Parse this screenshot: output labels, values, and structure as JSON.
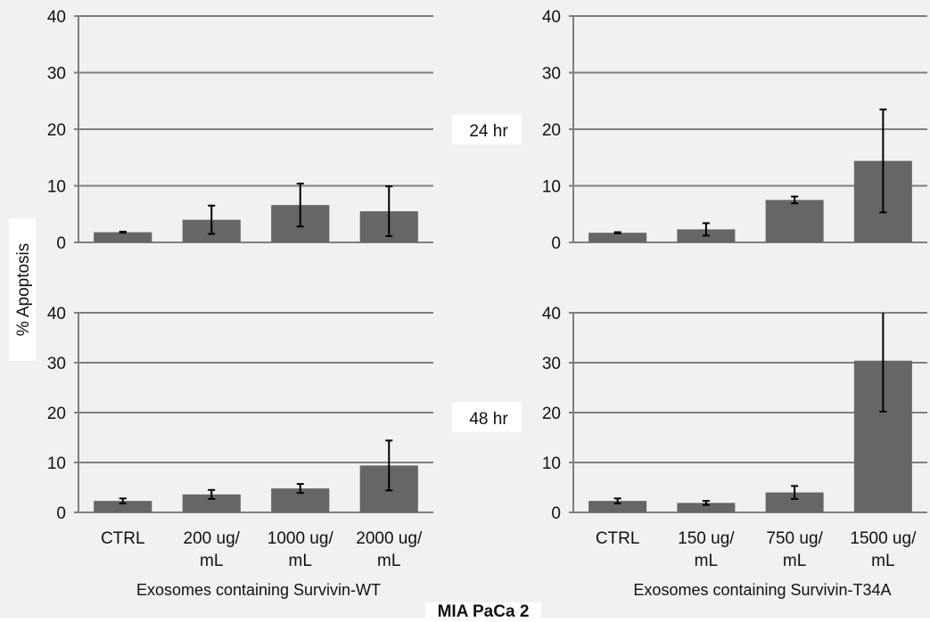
{
  "figure": {
    "ylabel": "% Apoptosis",
    "row_labels": [
      "24 hr",
      "48 hr"
    ],
    "col_labels": [
      "Exosomes containing Survivin-WT",
      "Exosomes containing Survivin-T34A"
    ],
    "title": "MIA PaCa 2"
  },
  "colors": {
    "bar": "#666666",
    "grid": "#7f7f7f",
    "background": "#f1f1f1",
    "error_bar": "#000000"
  },
  "chart_data": [
    {
      "type": "bar",
      "panel": "Survivin-WT, 24 hr",
      "categories": [
        "CTRL",
        "200 ug/ mL",
        "1000 ug/ mL",
        "2000 ug/ mL"
      ],
      "values": [
        1.8,
        4.0,
        6.6,
        5.5
      ],
      "errors": [
        0.1,
        2.5,
        3.8,
        4.4
      ],
      "ylim": [
        0,
        40
      ],
      "yticks": [
        0,
        10,
        20,
        30,
        40
      ],
      "grid": true
    },
    {
      "type": "bar",
      "panel": "Survivin-T34A, 24 hr",
      "categories": [
        "CTRL",
        "150 ug/ mL",
        "750 ug/ mL",
        "1500 ug/ mL"
      ],
      "values": [
        1.7,
        2.3,
        7.5,
        14.4
      ],
      "errors": [
        0.1,
        1.1,
        0.6,
        9.1
      ],
      "ylim": [
        0,
        40
      ],
      "yticks": [
        0,
        10,
        20,
        30,
        40
      ],
      "grid": true
    },
    {
      "type": "bar",
      "panel": "Survivin-WT, 48 hr",
      "categories": [
        "CTRL",
        "200 ug/ mL",
        "1000 ug/ mL",
        "2000 ug/ mL"
      ],
      "values": [
        2.3,
        3.6,
        4.8,
        9.4
      ],
      "errors": [
        0.5,
        0.9,
        0.9,
        5.0
      ],
      "ylim": [
        0,
        40
      ],
      "yticks": [
        0,
        10,
        20,
        30,
        40
      ],
      "grid": true
    },
    {
      "type": "bar",
      "panel": "Survivin-T34A, 48 hr",
      "categories": [
        "CTRL",
        "150 ug/ mL",
        "750 ug/ mL",
        "1500 ug/ mL"
      ],
      "values": [
        2.3,
        1.9,
        4.0,
        30.4
      ],
      "errors": [
        0.5,
        0.4,
        1.3,
        10.2
      ],
      "ylim": [
        0,
        40
      ],
      "yticks": [
        0,
        10,
        20,
        30,
        40
      ],
      "grid": true
    }
  ]
}
